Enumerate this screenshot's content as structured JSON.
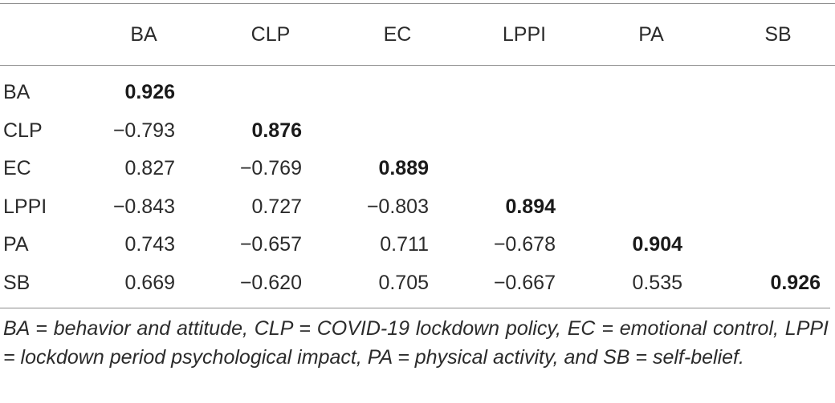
{
  "table": {
    "col_headers": [
      "",
      "BA",
      "CLP",
      "EC",
      "LPPI",
      "PA",
      "SB"
    ],
    "rows": [
      {
        "label": "BA",
        "values": [
          "0.926",
          "",
          "",
          "",
          "",
          ""
        ]
      },
      {
        "label": "CLP",
        "values": [
          "−0.793",
          "0.876",
          "",
          "",
          "",
          ""
        ]
      },
      {
        "label": "EC",
        "values": [
          "0.827",
          "−0.769",
          "0.889",
          "",
          "",
          ""
        ]
      },
      {
        "label": "LPPI",
        "values": [
          "−0.843",
          "0.727",
          "−0.803",
          "0.894",
          "",
          ""
        ]
      },
      {
        "label": "PA",
        "values": [
          "0.743",
          "−0.657",
          "0.711",
          "−0.678",
          "0.904",
          ""
        ]
      },
      {
        "label": "SB",
        "values": [
          "0.669",
          "−0.620",
          "0.705",
          "−0.667",
          "0.535",
          "0.926"
        ]
      }
    ]
  },
  "footnote": "BA = behavior and attitude, CLP = COVID-19 lockdown policy, EC = emotional control, LPPI = lockdown period psychological impact, PA = physical activity, and SB = self-belief."
}
